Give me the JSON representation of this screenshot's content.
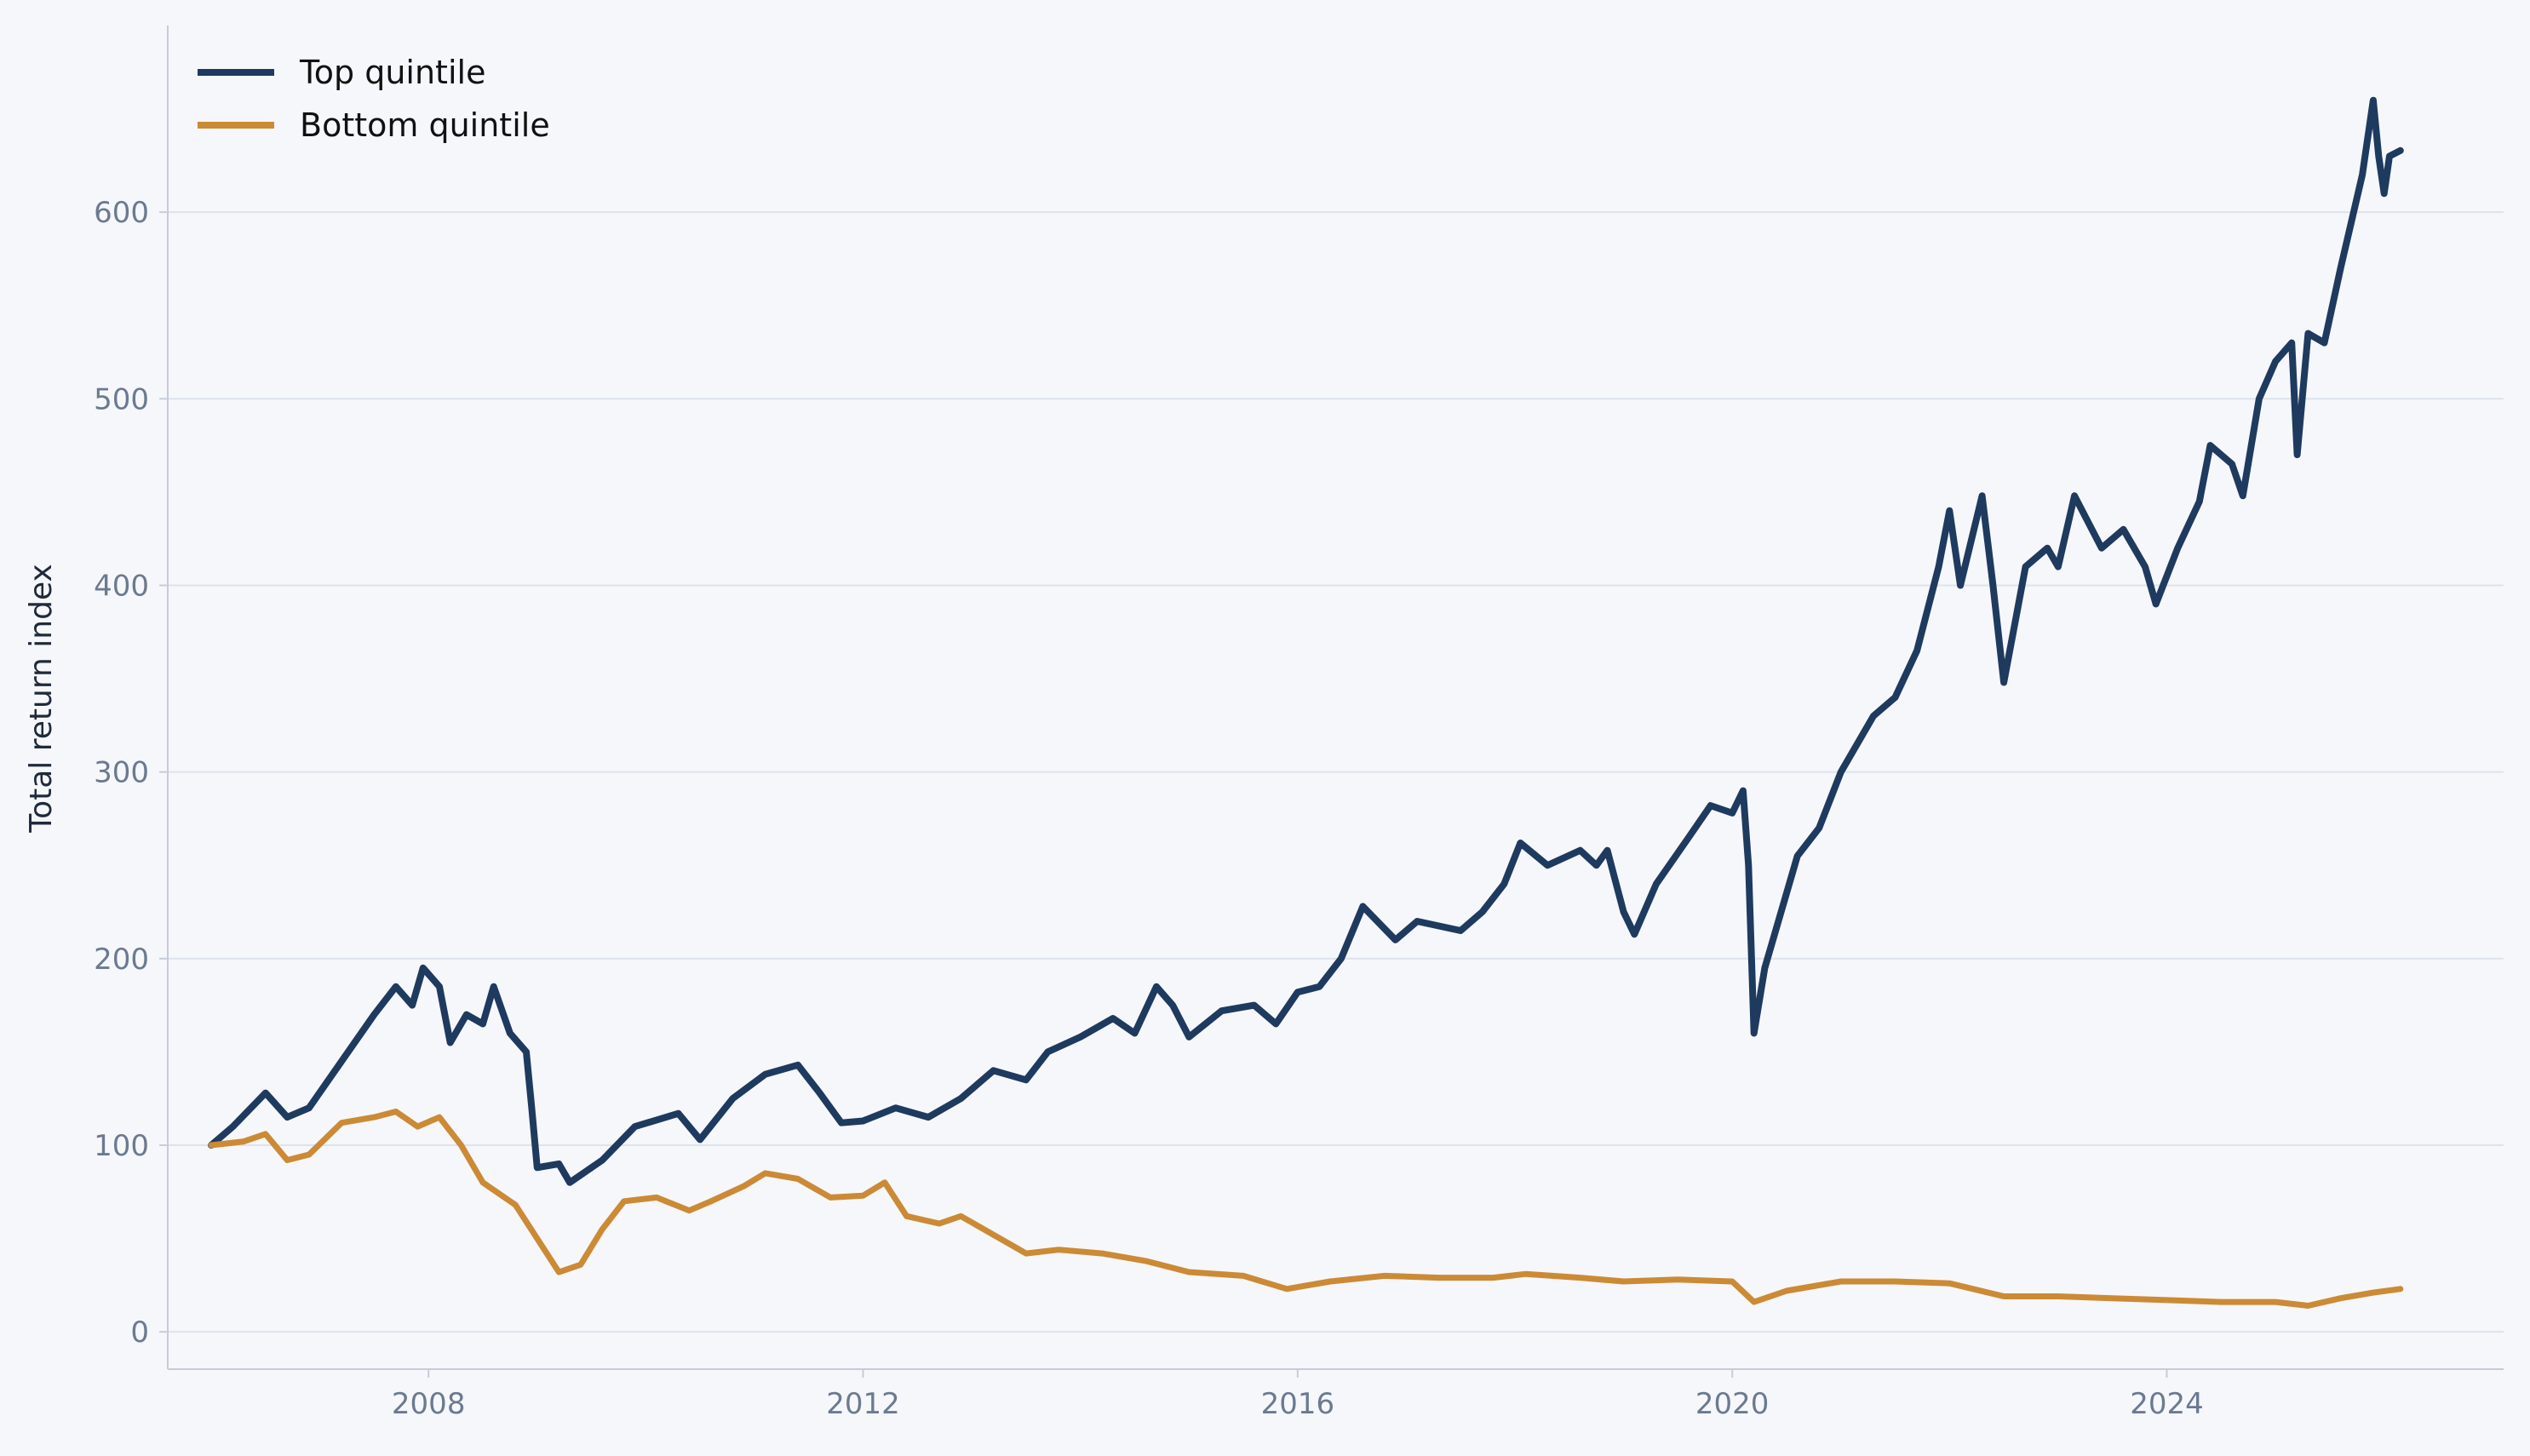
{
  "chart_data": {
    "type": "line",
    "title": "",
    "xlabel": "",
    "ylabel": "Total return index",
    "xlim": [
      2005.6,
      2027.1
    ],
    "ylim": [
      -20,
      700
    ],
    "x_ticks": [
      2008,
      2012,
      2016,
      2020,
      2024
    ],
    "y_ticks": [
      0,
      100,
      200,
      300,
      400,
      500,
      600
    ],
    "grid": "horizontal",
    "legend_position": "top-left",
    "series": [
      {
        "name": "Top quintile",
        "color": "#1f3a5f",
        "points": [
          [
            2006.0,
            100
          ],
          [
            2006.2,
            110
          ],
          [
            2006.5,
            128
          ],
          [
            2006.7,
            115
          ],
          [
            2006.9,
            120
          ],
          [
            2007.2,
            145
          ],
          [
            2007.5,
            170
          ],
          [
            2007.7,
            185
          ],
          [
            2007.85,
            175
          ],
          [
            2007.95,
            195
          ],
          [
            2008.1,
            185
          ],
          [
            2008.2,
            155
          ],
          [
            2008.35,
            170
          ],
          [
            2008.5,
            165
          ],
          [
            2008.6,
            185
          ],
          [
            2008.75,
            160
          ],
          [
            2008.9,
            150
          ],
          [
            2008.95,
            120
          ],
          [
            2009.0,
            88
          ],
          [
            2009.2,
            90
          ],
          [
            2009.3,
            80
          ],
          [
            2009.6,
            92
          ],
          [
            2009.9,
            110
          ],
          [
            2010.3,
            117
          ],
          [
            2010.5,
            103
          ],
          [
            2010.8,
            125
          ],
          [
            2011.1,
            138
          ],
          [
            2011.4,
            143
          ],
          [
            2011.6,
            128
          ],
          [
            2011.8,
            112
          ],
          [
            2012.0,
            113
          ],
          [
            2012.3,
            120
          ],
          [
            2012.6,
            115
          ],
          [
            2012.9,
            125
          ],
          [
            2013.2,
            140
          ],
          [
            2013.5,
            135
          ],
          [
            2013.7,
            150
          ],
          [
            2014.0,
            158
          ],
          [
            2014.3,
            168
          ],
          [
            2014.5,
            160
          ],
          [
            2014.7,
            185
          ],
          [
            2014.85,
            175
          ],
          [
            2015.0,
            158
          ],
          [
            2015.3,
            172
          ],
          [
            2015.6,
            175
          ],
          [
            2015.8,
            165
          ],
          [
            2016.0,
            182
          ],
          [
            2016.2,
            185
          ],
          [
            2016.4,
            200
          ],
          [
            2016.6,
            228
          ],
          [
            2016.9,
            210
          ],
          [
            2017.1,
            220
          ],
          [
            2017.5,
            215
          ],
          [
            2017.7,
            225
          ],
          [
            2017.9,
            240
          ],
          [
            2018.05,
            262
          ],
          [
            2018.3,
            250
          ],
          [
            2018.6,
            258
          ],
          [
            2018.75,
            250
          ],
          [
            2018.85,
            258
          ],
          [
            2019.0,
            225
          ],
          [
            2019.1,
            213
          ],
          [
            2019.3,
            240
          ],
          [
            2019.6,
            265
          ],
          [
            2019.8,
            282
          ],
          [
            2020.0,
            278
          ],
          [
            2020.1,
            290
          ],
          [
            2020.15,
            250
          ],
          [
            2020.2,
            160
          ],
          [
            2020.3,
            195
          ],
          [
            2020.6,
            255
          ],
          [
            2020.8,
            270
          ],
          [
            2021.0,
            300
          ],
          [
            2021.3,
            330
          ],
          [
            2021.5,
            340
          ],
          [
            2021.7,
            365
          ],
          [
            2021.9,
            410
          ],
          [
            2022.0,
            440
          ],
          [
            2022.1,
            400
          ],
          [
            2022.3,
            448
          ],
          [
            2022.4,
            400
          ],
          [
            2022.5,
            348
          ],
          [
            2022.7,
            410
          ],
          [
            2022.9,
            420
          ],
          [
            2023.0,
            410
          ],
          [
            2023.15,
            448
          ],
          [
            2023.4,
            420
          ],
          [
            2023.6,
            430
          ],
          [
            2023.8,
            410
          ],
          [
            2023.9,
            390
          ],
          [
            2024.1,
            420
          ],
          [
            2024.3,
            445
          ],
          [
            2024.4,
            475
          ],
          [
            2024.6,
            465
          ],
          [
            2024.7,
            448
          ],
          [
            2024.85,
            500
          ],
          [
            2025.0,
            520
          ],
          [
            2025.15,
            530
          ],
          [
            2025.2,
            470
          ],
          [
            2025.3,
            535
          ],
          [
            2025.45,
            530
          ],
          [
            2025.6,
            570
          ],
          [
            2025.8,
            620
          ],
          [
            2025.9,
            660
          ],
          [
            2025.95,
            630
          ],
          [
            2026.0,
            610
          ],
          [
            2026.05,
            630
          ],
          [
            2026.15,
            633
          ]
        ]
      },
      {
        "name": "Bottom quintile",
        "color": "#cc8a35",
        "points": [
          [
            2006.0,
            100
          ],
          [
            2006.3,
            102
          ],
          [
            2006.5,
            106
          ],
          [
            2006.7,
            92
          ],
          [
            2006.9,
            95
          ],
          [
            2007.2,
            112
          ],
          [
            2007.5,
            115
          ],
          [
            2007.7,
            118
          ],
          [
            2007.9,
            110
          ],
          [
            2008.1,
            115
          ],
          [
            2008.3,
            100
          ],
          [
            2008.5,
            80
          ],
          [
            2008.8,
            68
          ],
          [
            2009.0,
            50
          ],
          [
            2009.2,
            32
          ],
          [
            2009.4,
            36
          ],
          [
            2009.6,
            55
          ],
          [
            2009.8,
            70
          ],
          [
            2010.1,
            72
          ],
          [
            2010.4,
            65
          ],
          [
            2010.6,
            70
          ],
          [
            2010.9,
            78
          ],
          [
            2011.1,
            85
          ],
          [
            2011.4,
            82
          ],
          [
            2011.7,
            72
          ],
          [
            2012.0,
            73
          ],
          [
            2012.2,
            80
          ],
          [
            2012.4,
            62
          ],
          [
            2012.7,
            58
          ],
          [
            2012.9,
            62
          ],
          [
            2013.2,
            52
          ],
          [
            2013.5,
            42
          ],
          [
            2013.8,
            44
          ],
          [
            2014.2,
            42
          ],
          [
            2014.6,
            38
          ],
          [
            2015.0,
            32
          ],
          [
            2015.5,
            30
          ],
          [
            2015.9,
            23
          ],
          [
            2016.3,
            27
          ],
          [
            2016.8,
            30
          ],
          [
            2017.3,
            29
          ],
          [
            2017.8,
            29
          ],
          [
            2018.1,
            31
          ],
          [
            2018.6,
            29
          ],
          [
            2019.0,
            27
          ],
          [
            2019.5,
            28
          ],
          [
            2020.0,
            27
          ],
          [
            2020.2,
            16
          ],
          [
            2020.5,
            22
          ],
          [
            2021.0,
            27
          ],
          [
            2021.5,
            27
          ],
          [
            2022.0,
            26
          ],
          [
            2022.5,
            19
          ],
          [
            2023.0,
            19
          ],
          [
            2023.5,
            18
          ],
          [
            2024.0,
            17
          ],
          [
            2024.5,
            16
          ],
          [
            2025.0,
            16
          ],
          [
            2025.3,
            14
          ],
          [
            2025.6,
            18
          ],
          [
            2025.9,
            21
          ],
          [
            2026.15,
            23
          ]
        ]
      }
    ]
  }
}
